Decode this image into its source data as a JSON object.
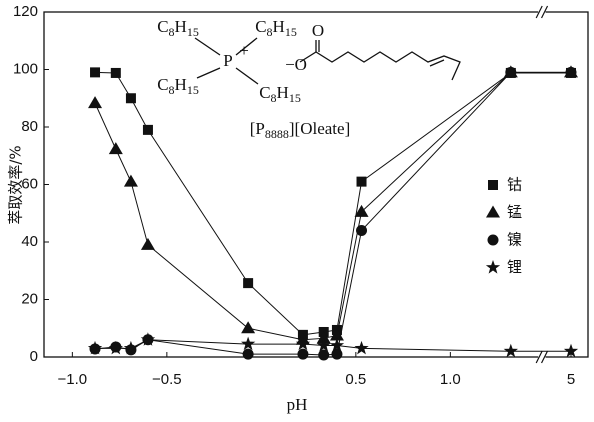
{
  "chart_data": {
    "type": "line",
    "y_label": "萃取效率/%",
    "x_label": "pH",
    "xlim": [
      -1.15,
      5.09
    ],
    "xbreak": [
      1.47,
      4.86
    ],
    "ylim": [
      0,
      120
    ],
    "yticks": [
      0,
      20,
      40,
      60,
      80,
      100,
      120
    ],
    "xticks": [
      {
        "value": -1.0,
        "label": "−1.0"
      },
      {
        "value": -0.5,
        "label": "−0.5"
      },
      {
        "value": 0.5,
        "label": "0.5"
      },
      {
        "value": 1.0,
        "label": "1.0"
      },
      5
    ],
    "x": [
      -0.88,
      -0.77,
      -0.69,
      -0.6,
      -0.07,
      0.22,
      0.33,
      0.4,
      0.53,
      1.32,
      5.0
    ],
    "series": [
      {
        "name": "钴",
        "marker": "square",
        "color": "#111",
        "values": [
          99,
          98.8,
          90,
          79,
          25.7,
          7.7,
          8.7,
          9.4,
          61,
          98.8,
          98.8
        ]
      },
      {
        "name": "锰",
        "marker": "triangle",
        "color": "#111",
        "values": [
          88.3,
          72.3,
          61,
          39,
          10,
          6,
          6.5,
          7.5,
          50.5,
          99,
          99
        ]
      },
      {
        "name": "镍",
        "marker": "circle",
        "color": "#111",
        "values": [
          2.8,
          3.5,
          2.5,
          6,
          1,
          1,
          0.7,
          1,
          44,
          99,
          99
        ]
      },
      {
        "name": "锂",
        "marker": "star",
        "color": "#111",
        "values": [
          3,
          3,
          3,
          6,
          4.5,
          4.5,
          4,
          4,
          3,
          2,
          2
        ]
      }
    ],
    "structure": {
      "groups": [
        "C8H15",
        "C8H15",
        "C8H15",
        "C8H15"
      ],
      "center": "P",
      "charge": "+",
      "anion": "−O",
      "carbonyl": "O",
      "name": "[P8888][Oleate]"
    }
  }
}
